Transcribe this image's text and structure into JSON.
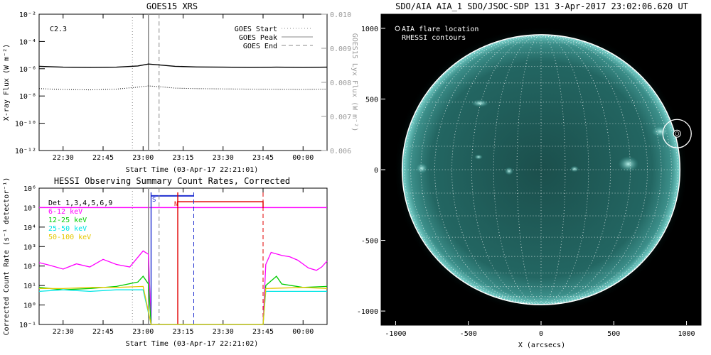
{
  "chart_data": [
    {
      "id": "goes",
      "type": "line",
      "title": "GOES15 XRS",
      "xlabel": "Start Time (03-Apr-17 22:21:01)",
      "ylabel": "X-ray Flux (W m⁻²)",
      "ylabel_right": "GOES15 Lyx Flux (W m⁻²)",
      "x_range": [
        "22:21",
        "00:09"
      ],
      "xticks": [
        "22:30",
        "22:45",
        "23:00",
        "23:15",
        "23:30",
        "23:45",
        "00:00"
      ],
      "ylim": [
        1e-12,
        0.01
      ],
      "yscale": "log",
      "yticks": [
        "10⁻¹²",
        "10⁻¹⁰",
        "10⁻⁸",
        "10⁻⁶",
        "10⁻⁴",
        "10⁻²"
      ],
      "ylim_right": [
        0.006,
        0.01
      ],
      "yticks_right": [
        "0.006",
        "0.007",
        "0.008",
        "0.009",
        "0.010"
      ],
      "annotation": "C2.3",
      "legend": [
        {
          "label": "GOES Start",
          "style": "dotted"
        },
        {
          "label": "GOES Peak",
          "style": "solid"
        },
        {
          "label": "GOES End",
          "style": "dashed"
        }
      ],
      "events": {
        "start": "22:56",
        "peak": "23:02",
        "end": "23:06"
      },
      "series": [
        {
          "color": "#000000",
          "style": "solid",
          "x": [
            "22:21",
            "22:30",
            "22:40",
            "22:50",
            "22:58",
            "23:02",
            "23:06",
            "23:12",
            "23:20",
            "23:30",
            "23:40",
            "23:50",
            "00:00",
            "00:09"
          ],
          "values": [
            1.5e-06,
            1.3e-06,
            1.25e-06,
            1.3e-06,
            1.6e-06,
            2.2e-06,
            1.9e-06,
            1.5e-06,
            1.35e-06,
            1.3e-06,
            1.25e-06,
            1.3e-06,
            1.25e-06,
            1.3e-06
          ]
        },
        {
          "color": "#000000",
          "style": "dotted",
          "x": [
            "22:21",
            "22:30",
            "22:40",
            "22:50",
            "22:58",
            "23:02",
            "23:06",
            "23:12",
            "23:20",
            "23:30",
            "23:40",
            "23:50",
            "00:00",
            "00:09"
          ],
          "values": [
            3.5e-08,
            3e-08,
            2.8e-08,
            3.2e-08,
            4.5e-08,
            5.5e-08,
            4.8e-08,
            3.8e-08,
            3.5e-08,
            3.3e-08,
            3.2e-08,
            3.1e-08,
            3e-08,
            3.2e-08
          ]
        }
      ]
    },
    {
      "id": "hessi",
      "type": "line",
      "title": "HESSI Observing Summary Count Rates, Corrected",
      "xlabel": "Start Time (03-Apr-17 22:21:02)",
      "ylabel": "Corrected Count Rate (s⁻¹ detector⁻¹)",
      "x_range": [
        "22:21",
        "00:09"
      ],
      "xticks": [
        "22:30",
        "22:45",
        "23:00",
        "23:15",
        "23:30",
        "23:45",
        "00:00"
      ],
      "ylim": [
        0.1,
        1000000.0
      ],
      "yscale": "log",
      "yticks": [
        "10⁻¹",
        "10⁰",
        "10¹",
        "10²",
        "10³",
        "10⁴",
        "10⁵",
        "10⁶"
      ],
      "legend": [
        {
          "label": "Det 1,3,4,5,6,9",
          "color": "#000000"
        },
        {
          "label": "6-12 keV",
          "color": "#ff00ff"
        },
        {
          "label": "12-25 keV",
          "color": "#00cc00"
        },
        {
          "label": "25-50 keV",
          "color": "#00e5e5"
        },
        {
          "label": "50-100 keV",
          "color": "#e5c800"
        }
      ],
      "bar_labels": [
        "S",
        "N"
      ],
      "events": {
        "goes_start": "22:56",
        "goes_peak": "23:02",
        "goes_end": "23:06"
      },
      "series": [
        {
          "name": "6-12 keV",
          "color": "#ff00ff",
          "x": [
            "22:21",
            "22:25",
            "22:30",
            "22:35",
            "22:40",
            "22:45",
            "22:50",
            "22:55",
            "23:00",
            "23:02",
            "23:03",
            "23:45",
            "23:46",
            "23:48",
            "23:52",
            "23:55",
            "23:58",
            "00:02",
            "00:05",
            "00:07",
            "00:09"
          ],
          "values": [
            150,
            110,
            70,
            130,
            90,
            220,
            120,
            90,
            600,
            400,
            0.1,
            0.1,
            120,
            500,
            350,
            300,
            200,
            80,
            60,
            90,
            180
          ]
        },
        {
          "name": "12-25 keV",
          "color": "#00cc00",
          "x": [
            "22:21",
            "22:30",
            "22:40",
            "22:50",
            "22:58",
            "23:00",
            "23:02",
            "23:03",
            "23:45",
            "23:46",
            "23:50",
            "23:52",
            "00:00",
            "00:09"
          ],
          "values": [
            8,
            6,
            7,
            9,
            15,
            30,
            12,
            0.1,
            0.1,
            10,
            30,
            12,
            8,
            9
          ]
        },
        {
          "name": "25-50 keV",
          "color": "#00e5e5",
          "x": [
            "22:21",
            "22:30",
            "22:40",
            "22:50",
            "23:00",
            "23:03",
            "23:45",
            "23:46",
            "00:00",
            "00:09"
          ],
          "values": [
            5,
            6,
            5,
            6,
            6,
            0.1,
            0.1,
            5,
            5,
            5
          ]
        },
        {
          "name": "50-100 keV",
          "color": "#e5c800",
          "x": [
            "22:21",
            "22:30",
            "22:40",
            "22:50",
            "23:00",
            "23:03",
            "23:45",
            "23:46",
            "00:00",
            "00:09"
          ],
          "values": [
            7,
            7,
            8,
            8,
            9,
            0.1,
            0.1,
            7,
            8,
            7
          ]
        }
      ]
    },
    {
      "id": "aia",
      "type": "scatter",
      "title": "SDO/AIA AIA_1 SDO/JSOC-SDP 131   3-Apr-2017 23:02:06.620 UT",
      "xlabel": "X (arcsecs)",
      "ylabel": "",
      "xlim": [
        -1100,
        1100
      ],
      "ylim": [
        -1100,
        1100
      ],
      "xticks": [
        "-1000",
        "-500",
        "0",
        "500",
        "1000"
      ],
      "yticks": [
        "-1000",
        "-500",
        "0",
        "500",
        "1000"
      ],
      "legend": [
        {
          "label": "AIA flare location",
          "marker": "circle"
        },
        {
          "label": "RHESSI contours",
          "marker": "none"
        }
      ],
      "solar_radius_arcsec": 955,
      "flare_location": {
        "x": 935,
        "y": 255
      },
      "grid": true
    }
  ]
}
